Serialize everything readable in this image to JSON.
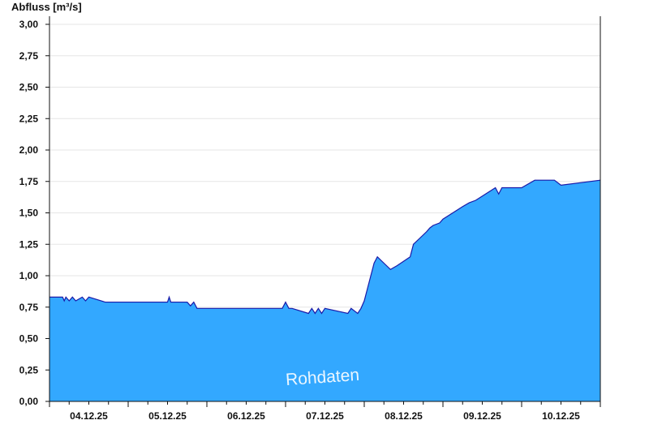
{
  "chart_data": {
    "type": "area",
    "ylabel": "Abfluss [m³/s]",
    "ylim": [
      0,
      3.0
    ],
    "yticks": [
      "0,00",
      "0,25",
      "0,50",
      "0,75",
      "1,00",
      "1,25",
      "1,50",
      "1,75",
      "2,00",
      "2,25",
      "2,50",
      "2,75",
      "3,00"
    ],
    "xlim": [
      "04.12.25 00:00",
      "10.12.25 24:00"
    ],
    "xticks": [
      "04.12.25",
      "05.12.25",
      "06.12.25",
      "07.12.25",
      "08.12.25",
      "09.12.25",
      "10.12.25"
    ],
    "grid": true,
    "fill_color": "#33a8ff",
    "line_color": "#1a1aa8",
    "watermark": "Rohdaten",
    "series": [
      {
        "x": [
          "04.12.25 00:00",
          "04.12.25 04:00",
          "04.12.25 04:30",
          "04.12.25 05:00",
          "04.12.25 06:00",
          "04.12.25 07:00",
          "04.12.25 08:00",
          "04.12.25 10:00",
          "04.12.25 11:00",
          "04.12.25 12:00",
          "04.12.25 17:00",
          "05.12.25 00:00",
          "05.12.25 12:00",
          "05.12.25 12:30",
          "05.12.25 13:00",
          "05.12.25 18:00",
          "05.12.25 19:00",
          "05.12.25 20:00",
          "05.12.25 21:00",
          "06.12.25 00:00",
          "06.12.25 12:00",
          "06.12.25 23:00",
          "07.12.25 00:00",
          "07.12.25 01:00",
          "07.12.25 02:00",
          "07.12.25 07:00",
          "07.12.25 08:00",
          "07.12.25 09:00",
          "07.12.25 10:00",
          "07.12.25 11:00",
          "07.12.25 12:00",
          "07.12.25 19:00",
          "07.12.25 20:00",
          "07.12.25 22:00",
          "07.12.25 23:00",
          "08.12.25 00:00",
          "08.12.25 01:00",
          "08.12.25 02:00",
          "08.12.25 03:00",
          "08.12.25 04:00",
          "08.12.25 06:00",
          "08.12.25 08:00",
          "08.12.25 10:00",
          "08.12.25 14:00",
          "08.12.25 15:00",
          "08.12.25 17:00",
          "08.12.25 19:00",
          "08.12.25 20:00",
          "08.12.25 21:00",
          "08.12.25 23:00",
          "09.12.25 00:00",
          "09.12.25 03:00",
          "09.12.25 06:00",
          "09.12.25 08:00",
          "09.12.25 10:00",
          "09.12.25 13:00",
          "09.12.25 16:00",
          "09.12.25 17:00",
          "09.12.25 18:00",
          "10.12.25 00:00",
          "10.12.25 04:00",
          "10.12.25 10:00",
          "10.12.25 12:00",
          "10.12.25 24:00"
        ],
        "y": [
          0.83,
          0.83,
          0.8,
          0.83,
          0.8,
          0.83,
          0.8,
          0.83,
          0.8,
          0.83,
          0.79,
          0.79,
          0.79,
          0.83,
          0.79,
          0.79,
          0.76,
          0.79,
          0.74,
          0.74,
          0.74,
          0.74,
          0.79,
          0.74,
          0.74,
          0.7,
          0.74,
          0.7,
          0.74,
          0.7,
          0.74,
          0.7,
          0.74,
          0.7,
          0.74,
          0.8,
          0.9,
          1.0,
          1.1,
          1.15,
          1.1,
          1.05,
          1.08,
          1.15,
          1.25,
          1.3,
          1.35,
          1.38,
          1.4,
          1.42,
          1.45,
          1.5,
          1.55,
          1.58,
          1.6,
          1.65,
          1.7,
          1.65,
          1.7,
          1.7,
          1.76,
          1.76,
          1.72,
          1.76
        ]
      }
    ]
  }
}
